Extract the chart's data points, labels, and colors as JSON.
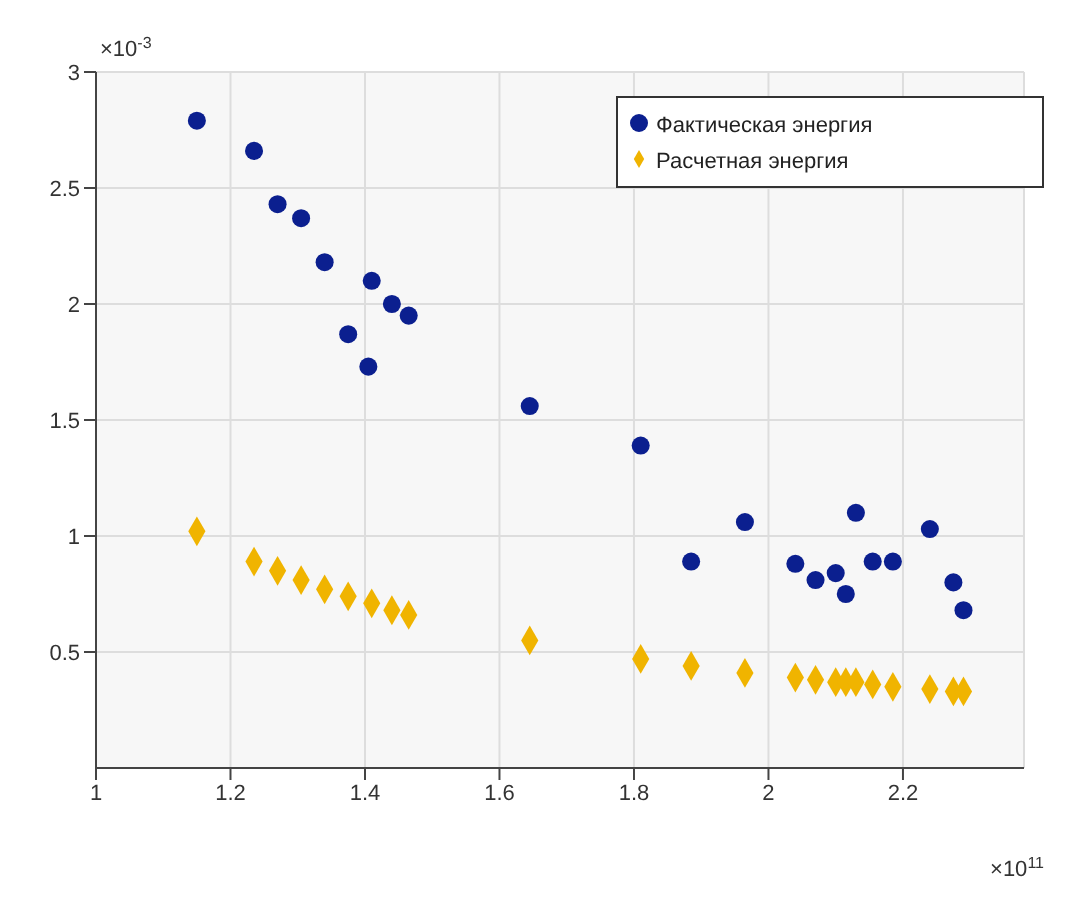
{
  "chart_data": {
    "type": "scatter",
    "xlim": [
      1,
      2.38
    ],
    "xticks": [
      1,
      1.2,
      1.4,
      1.6,
      1.8,
      2,
      2.2
    ],
    "ylim": [
      0,
      3
    ],
    "yticks": [
      0.5,
      1,
      1.5,
      2,
      2.5,
      3
    ],
    "grid": true,
    "legend": "top right",
    "annotations": [
      "×10$^{-3}$",
      "×10$^{11}$"
    ],
    "series": [
      {
        "name": "Фактическая энергия",
        "color": "#0b1f8f",
        "marker": "circle",
        "x": [
          1.15,
          1.235,
          1.27,
          1.305,
          1.34,
          1.375,
          1.405,
          1.41,
          1.44,
          1.465,
          1.645,
          1.81,
          1.885,
          1.965,
          2.04,
          2.07,
          2.1,
          2.115,
          2.13,
          2.155,
          2.185,
          2.24,
          2.275,
          2.29
        ],
        "values": [
          2.79,
          2.66,
          2.43,
          2.37,
          2.18,
          1.87,
          1.73,
          2.1,
          2.0,
          1.95,
          1.56,
          1.39,
          0.89,
          1.06,
          0.88,
          0.81,
          0.84,
          0.75,
          1.1,
          0.89,
          0.89,
          1.03,
          0.8,
          0.68
        ]
      },
      {
        "name": "Расчетная энергия",
        "color": "#f0b400",
        "marker": "diamond",
        "x": [
          1.15,
          1.235,
          1.27,
          1.305,
          1.34,
          1.375,
          1.41,
          1.44,
          1.465,
          1.645,
          1.81,
          1.885,
          1.965,
          2.04,
          2.07,
          2.1,
          2.115,
          2.13,
          2.155,
          2.185,
          2.24,
          2.275,
          2.29
        ],
        "values": [
          1.02,
          0.89,
          0.85,
          0.81,
          0.77,
          0.74,
          0.71,
          0.68,
          0.66,
          0.55,
          0.47,
          0.44,
          0.41,
          0.39,
          0.38,
          0.37,
          0.37,
          0.37,
          0.36,
          0.35,
          0.34,
          0.33,
          0.33
        ]
      }
    ]
  }
}
